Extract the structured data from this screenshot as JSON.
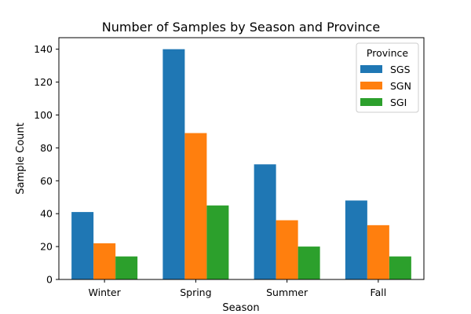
{
  "chart_data": {
    "type": "bar",
    "title": "Number of Samples by Season and Province",
    "xlabel": "Season",
    "ylabel": "Sample Count",
    "categories": [
      "Winter",
      "Spring",
      "Summer",
      "Fall"
    ],
    "series": [
      {
        "name": "SGS",
        "color": "#1f77b4",
        "values": [
          41,
          140,
          70,
          48
        ]
      },
      {
        "name": "SGN",
        "color": "#ff7f0e",
        "values": [
          22,
          89,
          36,
          33
        ]
      },
      {
        "name": "SGI",
        "color": "#2ca02c",
        "values": [
          14,
          45,
          20,
          14
        ]
      }
    ],
    "ylim": [
      0,
      147
    ],
    "yticks": [
      0,
      20,
      40,
      60,
      80,
      100,
      120,
      140
    ],
    "legend": {
      "title": "Province",
      "placement": "upper-right"
    },
    "grid": false
  }
}
